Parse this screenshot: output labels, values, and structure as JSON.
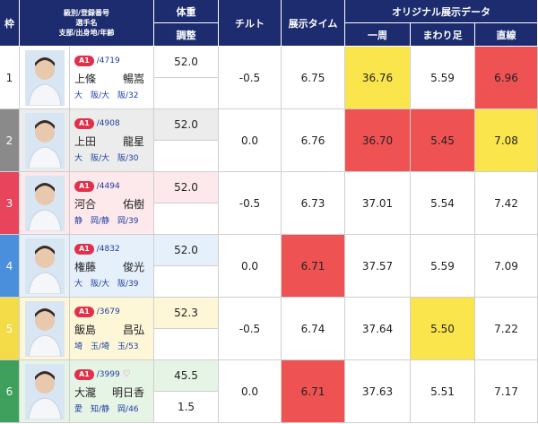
{
  "header": {
    "frame": "枠",
    "racer": [
      "級別/登録番号",
      "選手名",
      "支部/出身地/年齢"
    ],
    "weight": "体重",
    "adjust": "調整",
    "tilt": "チルト",
    "time": "展示タイム",
    "original": "オリジナル展示データ",
    "lap": "一周",
    "turn": "まわり足",
    "straight": "直線"
  },
  "rows": [
    {
      "frame": "1",
      "frame_color": "#ffffff",
      "row_color": "#ffffff",
      "class": "A1",
      "reg": "/4719",
      "family": "上條",
      "given": "暢嵩",
      "branch": "大　阪/大　阪/32",
      "weight": "52.0",
      "adjust": null,
      "tilt": "-0.5",
      "time": "6.75",
      "lap": "36.76",
      "turn": "5.59",
      "straight": "6.96",
      "highlight": {
        "lap": "#fbe54c",
        "straight": "#ef5252"
      }
    },
    {
      "frame": "2",
      "frame_color": "#8a8a8a",
      "row_color": "#ececec",
      "class": "A1",
      "reg": "/4908",
      "family": "上田",
      "given": "龍星",
      "branch": "大　阪/大　阪/30",
      "weight": "52.0",
      "adjust": null,
      "tilt": "0.0",
      "time": "6.76",
      "lap": "36.70",
      "turn": "5.45",
      "straight": "7.08",
      "highlight": {
        "lap": "#ef5252",
        "turn": "#ef5252",
        "straight": "#fbe54c"
      }
    },
    {
      "frame": "3",
      "frame_color": "#e8455c",
      "row_color": "#fde8ec",
      "class": "A1",
      "reg": "/4494",
      "family": "河合",
      "given": "佑樹",
      "branch": "静　岡/静　岡/39",
      "weight": "52.0",
      "adjust": null,
      "tilt": "-0.5",
      "time": "6.73",
      "lap": "37.01",
      "turn": "5.54",
      "straight": "7.42",
      "highlight": {}
    },
    {
      "frame": "4",
      "frame_color": "#4a8fdc",
      "row_color": "#e6f0fb",
      "class": "A1",
      "reg": "/4832",
      "family": "権藤",
      "given": "俊光",
      "branch": "大　阪/大　阪/39",
      "weight": "52.0",
      "adjust": null,
      "tilt": "0.0",
      "time": "6.71",
      "lap": "37.57",
      "turn": "5.59",
      "straight": "7.09",
      "highlight": {
        "time": "#ef5252"
      }
    },
    {
      "frame": "5",
      "frame_color": "#f3dc48",
      "row_color": "#fdf7d8",
      "class": "A1",
      "reg": "/3679",
      "family": "飯島",
      "given": "昌弘",
      "branch": "埼　玉/埼　玉/53",
      "weight": "52.3",
      "adjust": null,
      "tilt": "-0.5",
      "time": "6.74",
      "lap": "37.64",
      "turn": "5.50",
      "straight": "7.22",
      "highlight": {
        "turn": "#fbe54c"
      }
    },
    {
      "frame": "6",
      "frame_color": "#3f9f5c",
      "row_color": "#e6f4e6",
      "class": "A1",
      "reg": "/3999",
      "favorite": true,
      "family": "大瀧",
      "given": "明日香",
      "branch": "愛　知/静　岡/46",
      "weight": "45.5",
      "adjust": "1.5",
      "tilt": "0.0",
      "time": "6.71",
      "lap": "37.63",
      "turn": "5.51",
      "straight": "7.17",
      "highlight": {
        "time": "#ef5252"
      }
    }
  ]
}
